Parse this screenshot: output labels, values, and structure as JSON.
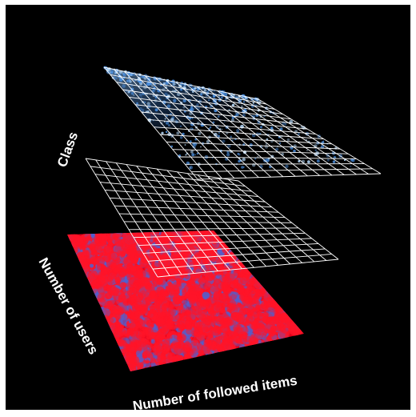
{
  "chart_data": {
    "type": "scatter",
    "subtype": "3d-layered-grids",
    "axis_labels": {
      "vertical": "Class",
      "depth": "Number of users",
      "horizontal": "Number of followed items"
    },
    "layers": [
      {
        "name": "top-layer",
        "kind": "grid-with-points",
        "grid_cells": 15,
        "point_color": "#4a90e2"
      },
      {
        "name": "middle-layer",
        "kind": "grid",
        "grid_cells": 15
      },
      {
        "name": "bottom-layer",
        "kind": "dense-scatter",
        "point_colors": [
          "#ff1428",
          "#5060d0"
        ]
      }
    ],
    "grid_color": "#ffffff",
    "background": "#000000"
  }
}
